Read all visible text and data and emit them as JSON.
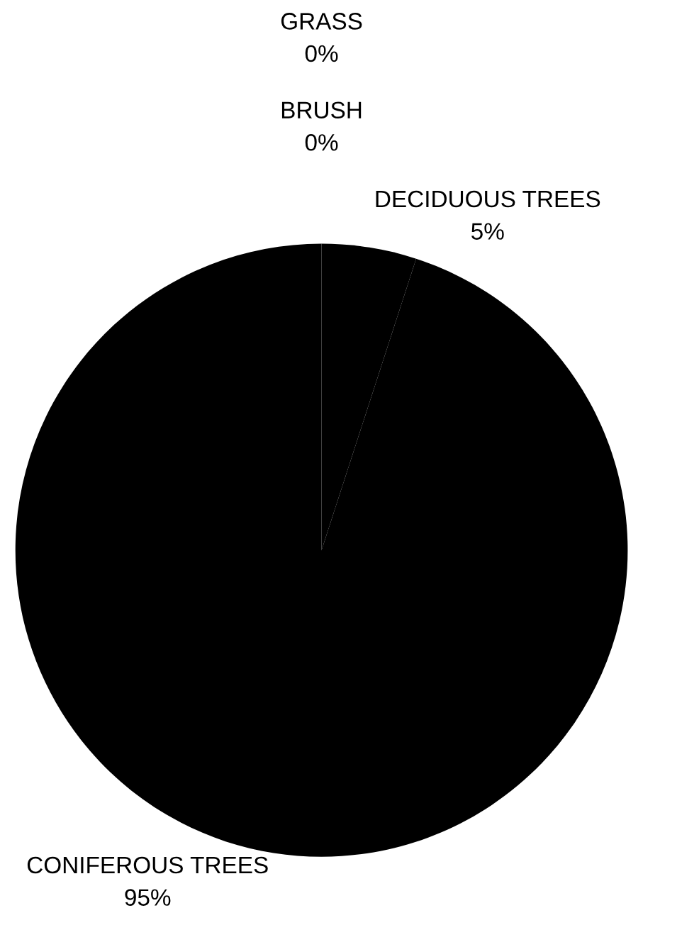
{
  "chart_data": {
    "type": "pie",
    "categories": [
      "GRASS",
      "BRUSH",
      "DECIDUOUS TREES",
      "CONIFEROUS TREES"
    ],
    "values": [
      0,
      0,
      5,
      95
    ],
    "value_labels": [
      "0%",
      "0%",
      "5%",
      "95%"
    ],
    "colors": [
      "#000000",
      "#000000",
      "#000000",
      "#000000"
    ],
    "legend": false
  }
}
